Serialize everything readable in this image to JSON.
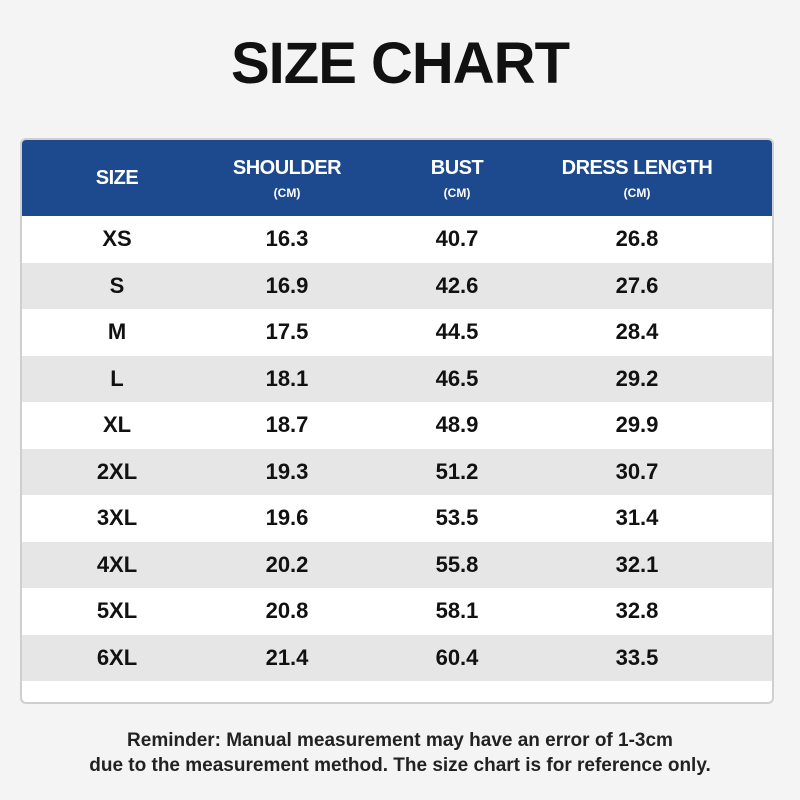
{
  "header": {
    "title": "SIZE CHART"
  },
  "table": {
    "columns": [
      {
        "name": "SIZE"
      },
      {
        "name": "SHOULDER",
        "unit": "(CM)"
      },
      {
        "name": "BUST",
        "unit": "(CM)"
      },
      {
        "name": "DRESS LENGTH",
        "unit": "(CM)"
      }
    ],
    "rows": [
      [
        "XS",
        "16.3",
        "40.7",
        "26.8"
      ],
      [
        "S",
        "16.9",
        "42.6",
        "27.6"
      ],
      [
        "M",
        "17.5",
        "44.5",
        "28.4"
      ],
      [
        "L",
        "18.1",
        "46.5",
        "29.2"
      ],
      [
        "XL",
        "18.7",
        "48.9",
        "29.9"
      ],
      [
        "2XL",
        "19.3",
        "51.2",
        "30.7"
      ],
      [
        "3XL",
        "19.6",
        "53.5",
        "31.4"
      ],
      [
        "4XL",
        "20.2",
        "55.8",
        "32.1"
      ],
      [
        "5XL",
        "20.8",
        "58.1",
        "32.8"
      ],
      [
        "6XL",
        "21.4",
        "60.4",
        "33.5"
      ]
    ]
  },
  "footer": {
    "lines": [
      "Reminder: Manual measurement may have an error of 1-3cm",
      "due to the measurement method. The size chart is for reference only."
    ]
  }
}
